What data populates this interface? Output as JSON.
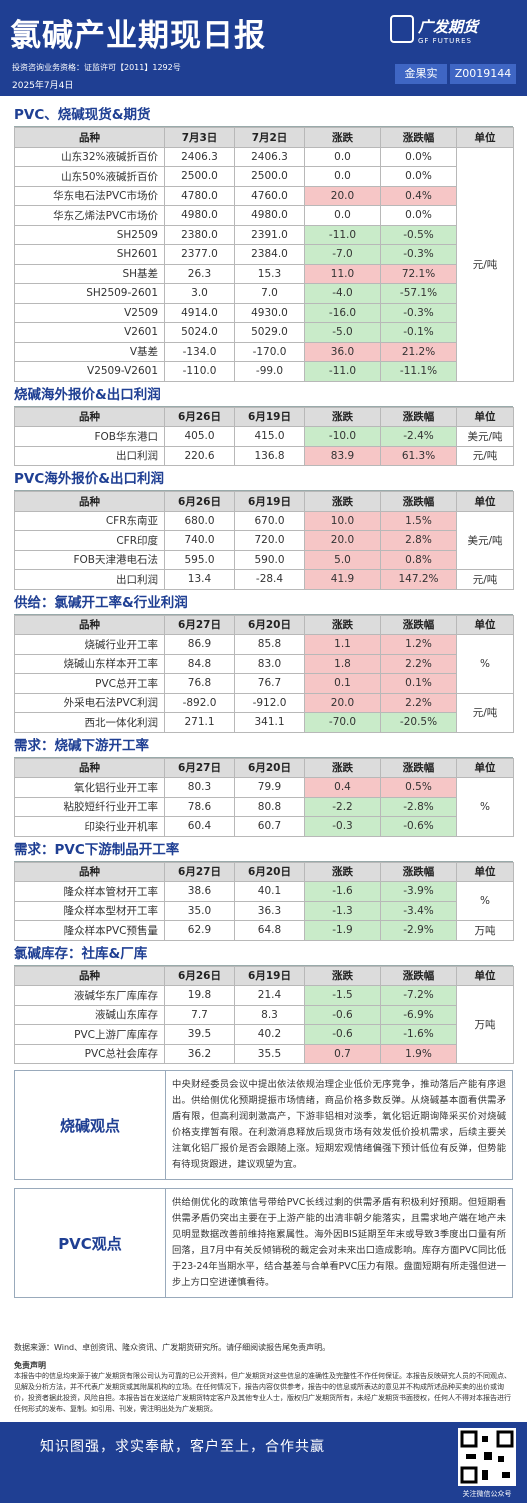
{
  "header": {
    "title": "氯碱产业期现日报",
    "qualification": "投资咨询业务资格：证监许可【2011】1292号",
    "date": "2025年7月4日",
    "logo_cn": "广发期货",
    "logo_en": "GF FUTURES",
    "analyst": "金果实",
    "analyst_id": "Z0019144"
  },
  "sections": [
    {
      "title": "PVC、烧碱现货&期货",
      "columns": [
        "品种",
        "7月3日",
        "7月2日",
        "涨跌",
        "涨跌幅",
        "单位"
      ],
      "rows": [
        [
          "山东32%液碱折百价",
          "2406.3",
          "2406.3",
          "0.0",
          "0.0%",
          "元/吨"
        ],
        [
          "山东50%液碱折百价",
          "2500.0",
          "2500.0",
          "0.0",
          "0.0%",
          null
        ],
        [
          "华东电石法PVC市场价",
          "4780.0",
          "4760.0",
          "20.0",
          "0.4%",
          null
        ],
        [
          "华东乙烯法PVC市场价",
          "4980.0",
          "4980.0",
          "0.0",
          "0.0%",
          null
        ],
        [
          "SH2509",
          "2380.0",
          "2391.0",
          "-11.0",
          "-0.5%",
          null
        ],
        [
          "SH2601",
          "2377.0",
          "2384.0",
          "-7.0",
          "-0.3%",
          null
        ],
        [
          "SH基差",
          "26.3",
          "15.3",
          "11.0",
          "72.1%",
          null
        ],
        [
          "SH2509-2601",
          "3.0",
          "7.0",
          "-4.0",
          "-57.1%",
          null
        ],
        [
          "V2509",
          "4914.0",
          "4930.0",
          "-16.0",
          "-0.3%",
          null
        ],
        [
          "V2601",
          "5024.0",
          "5029.0",
          "-5.0",
          "-0.1%",
          null
        ],
        [
          "V基差",
          "-134.0",
          "-170.0",
          "36.0",
          "21.2%",
          null
        ],
        [
          "V2509-V2601",
          "-110.0",
          "-99.0",
          "-11.0",
          "-11.1%",
          null
        ]
      ]
    },
    {
      "title": "烧碱海外报价&出口利润",
      "columns": [
        "品种",
        "6月26日",
        "6月19日",
        "涨跌",
        "涨跌幅",
        "单位"
      ],
      "rows": [
        [
          "FOB华东港口",
          "405.0",
          "415.0",
          "-10.0",
          "-2.4%",
          "美元/吨"
        ],
        [
          "出口利润",
          "220.6",
          "136.8",
          "83.9",
          "61.3%",
          "元/吨"
        ]
      ]
    },
    {
      "title": "PVC海外报价&出口利润",
      "columns": [
        "品种",
        "6月26日",
        "6月19日",
        "涨跌",
        "涨跌幅",
        "单位"
      ],
      "rows": [
        [
          "CFR东南亚",
          "680.0",
          "670.0",
          "10.0",
          "1.5%",
          "美元/吨"
        ],
        [
          "CFR印度",
          "740.0",
          "720.0",
          "20.0",
          "2.8%",
          null
        ],
        [
          "FOB天津港电石法",
          "595.0",
          "590.0",
          "5.0",
          "0.8%",
          null
        ],
        [
          "出口利润",
          "13.4",
          "-28.4",
          "41.9",
          "147.2%",
          "元/吨"
        ]
      ]
    },
    {
      "title": "供给：氯碱开工率&行业利润",
      "columns": [
        "品种",
        "6月27日",
        "6月20日",
        "涨跌",
        "涨跌幅",
        "单位"
      ],
      "rows": [
        [
          "烧碱行业开工率",
          "86.9",
          "85.8",
          "1.1",
          "1.2%",
          "%"
        ],
        [
          "烧碱山东样本开工率",
          "84.8",
          "83.0",
          "1.8",
          "2.2%",
          null
        ],
        [
          "PVC总开工率",
          "76.8",
          "76.7",
          "0.1",
          "0.1%",
          null
        ],
        [
          "外采电石法PVC利润",
          "-892.0",
          "-912.0",
          "20.0",
          "2.2%",
          "元/吨"
        ],
        [
          "西北一体化利润",
          "271.1",
          "341.1",
          "-70.0",
          "-20.5%",
          null
        ]
      ]
    },
    {
      "title": "需求：烧碱下游开工率",
      "columns": [
        "品种",
        "6月27日",
        "6月20日",
        "涨跌",
        "涨跌幅",
        "单位"
      ],
      "rows": [
        [
          "氧化铝行业开工率",
          "80.3",
          "79.9",
          "0.4",
          "0.5%",
          "%"
        ],
        [
          "粘胶短纤行业开工率",
          "78.6",
          "80.8",
          "-2.2",
          "-2.8%",
          null
        ],
        [
          "印染行业开机率",
          "60.4",
          "60.7",
          "-0.3",
          "-0.6%",
          null
        ]
      ]
    },
    {
      "title": "需求：PVC下游制品开工率",
      "columns": [
        "品种",
        "6月27日",
        "6月20日",
        "涨跌",
        "涨跌幅",
        "单位"
      ],
      "rows": [
        [
          "隆众样本管材开工率",
          "38.6",
          "40.1",
          "-1.6",
          "-3.9%",
          "%"
        ],
        [
          "隆众样本型材开工率",
          "35.0",
          "36.3",
          "-1.3",
          "-3.4%",
          null
        ],
        [
          "隆众样本PVC预售量",
          "62.9",
          "64.8",
          "-1.9",
          "-2.9%",
          "万吨"
        ]
      ]
    },
    {
      "title": "氯碱库存：社库&厂库",
      "columns": [
        "品种",
        "6月26日",
        "6月19日",
        "涨跌",
        "涨跌幅",
        "单位"
      ],
      "rows": [
        [
          "液碱华东厂库库存",
          "19.8",
          "21.4",
          "-1.5",
          "-7.2%",
          "万吨"
        ],
        [
          "液碱山东库存",
          "7.7",
          "8.3",
          "-0.6",
          "-6.9%",
          null
        ],
        [
          "PVC上游厂库库存",
          "39.5",
          "40.2",
          "-0.6",
          "-1.6%",
          null
        ],
        [
          "PVC总社会库存",
          "36.2",
          "35.5",
          "0.7",
          "1.9%",
          null
        ]
      ]
    }
  ],
  "views": [
    {
      "label": "烧碱观点",
      "text": "中央财经委员会议中提出依法依规治理企业低价无序竞争，推动落后产能有序退出。供给侧优化预期提振市场情绪，商品价格多数反弹。从烧碱基本面看供需矛盾有限，但高利润刺激高产，下游非铝相对淡季，氧化铝近期询降采买价对烧碱价格支撑暂有限。在利激消息释放后现货市场有效发低价投机需求，后续主要关注氧化铝厂报价是否会跟随上涨。短期宏观情绪偏强下预计低位有反弹，但势能有待现货跟进，建议观望为宜。"
    },
    {
      "label": "PVC观点",
      "text": "供给侧优化的政策信号带给PVC长线过剩的供需矛盾有积极利好预期。但短期看供需矛盾仍突出主要在于上游产能的出清非朝夕能落实，且需求地产端在地产未见明显数据改善前维持拖累属性。海外因BIS延期至年末或导致3季度出口量有所回落，且7月中有关反倾销税的裁定会对未来出口造成影响。库存方面PVC同比低于23-24年当期水平，结合基差与合单看PVC压力有限。盘面短期有所走强但进一步上方口空进谨慎看待。"
    }
  ],
  "source": "数据来源：Wind、卓创资讯、隆众资讯、广发期货研究所。请仔细阅读报告尾免责声明。",
  "disclaimer": {
    "title": "免责声明",
    "text": "本报告中的信息均来源于被广发期货有限公司认为可靠的已公开资料，但广发期货对这些信息的准确性及完整性不作任何保证。本报告反映研究人员的不同观点、见解及分析方法，并不代表广发期货或其附属机构的立场。在任何情况下，报告内容仅供参考，报告中的信息或所表达的意见并不构成所述品种买卖的出价或询价，投资者据此投资，风险自担。本报告旨在发送给广发期货特定客户及其他专业人士，版权归广发期货所有，未经广发期货书面授权，任何人不得对本报告进行任何形式的发布、复制。如引用、刊发，需注明出处为广发期货。"
  },
  "footer": {
    "slogan": "知识图强，求实奉献，客户至上，合作共赢",
    "qr_caption": "关注微信公众号"
  }
}
